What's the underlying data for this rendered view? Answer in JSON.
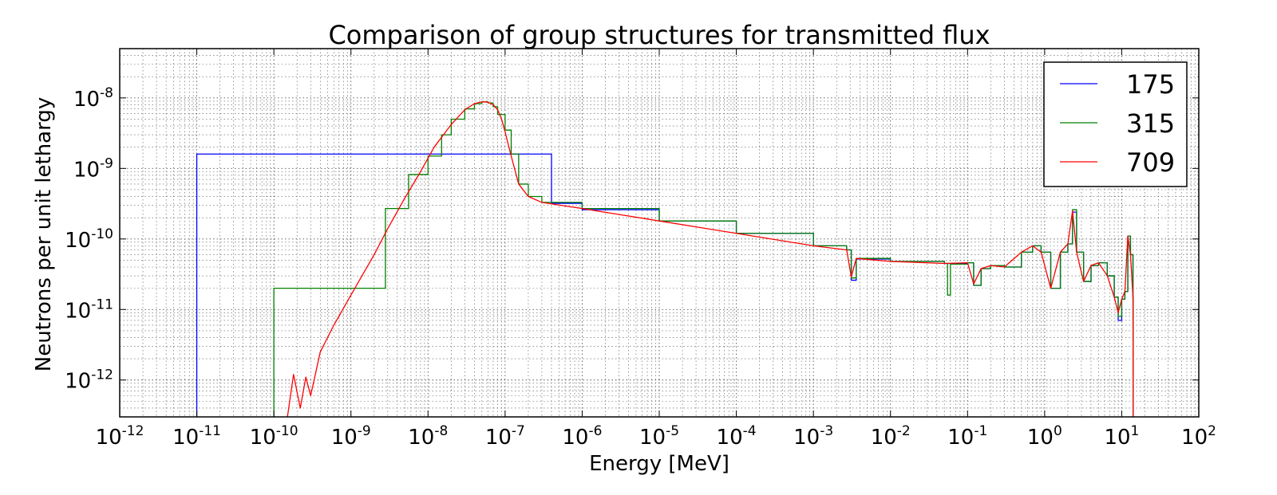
{
  "chart_data": {
    "type": "line",
    "title": "Comparison of group structures for transmitted flux",
    "xlabel": "Energy [MeV]",
    "ylabel": "Neutrons per unit lethargy",
    "xscale": "log",
    "yscale": "log",
    "xlim": [
      1e-12,
      100
    ],
    "ylim": [
      3e-13,
      5e-08
    ],
    "grid": true,
    "legend_position": "top-right",
    "x_ticks": [
      {
        "base": "10",
        "exp": "-12",
        "value": 1e-12
      },
      {
        "base": "10",
        "exp": "-11",
        "value": 1e-11
      },
      {
        "base": "10",
        "exp": "-10",
        "value": 1e-10
      },
      {
        "base": "10",
        "exp": "-9",
        "value": 1e-09
      },
      {
        "base": "10",
        "exp": "-8",
        "value": 1e-08
      },
      {
        "base": "10",
        "exp": "-7",
        "value": 1e-07
      },
      {
        "base": "10",
        "exp": "-6",
        "value": 1e-06
      },
      {
        "base": "10",
        "exp": "-5",
        "value": 1e-05
      },
      {
        "base": "10",
        "exp": "-4",
        "value": 0.0001
      },
      {
        "base": "10",
        "exp": "-3",
        "value": 0.001
      },
      {
        "base": "10",
        "exp": "-2",
        "value": 0.01
      },
      {
        "base": "10",
        "exp": "-1",
        "value": 0.1
      },
      {
        "base": "10",
        "exp": "0",
        "value": 1
      },
      {
        "base": "10",
        "exp": "1",
        "value": 10
      },
      {
        "base": "10",
        "exp": "2",
        "value": 100
      }
    ],
    "y_ticks": [
      {
        "base": "10",
        "exp": "-12",
        "value": 1e-12
      },
      {
        "base": "10",
        "exp": "-11",
        "value": 1e-11
      },
      {
        "base": "10",
        "exp": "-10",
        "value": 1e-10
      },
      {
        "base": "10",
        "exp": "-9",
        "value": 1e-09
      },
      {
        "base": "10",
        "exp": "-8",
        "value": 1e-08
      }
    ],
    "series": [
      {
        "name": "175",
        "color": "#0000ff",
        "style": "step",
        "x": [
          1e-11,
          1e-11,
          4e-07,
          4e-07,
          1e-06,
          1e-05,
          0.0001,
          0.001,
          0.0027,
          0.0031,
          0.0036,
          0.01,
          0.05,
          0.1,
          0.12,
          0.15,
          0.2,
          0.3,
          0.5,
          0.7,
          0.9,
          1.2,
          1.6,
          2.0,
          2.3,
          2.6,
          3.2,
          4.0,
          5.0,
          6.5,
          8.0,
          9.0,
          10.0,
          11.0,
          12.0,
          13.0,
          14.0,
          14.1
        ],
        "y": [
          3e-13,
          1.6e-09,
          1.6e-09,
          3.2e-10,
          2.6e-10,
          1.8e-10,
          1.2e-10,
          8e-11,
          7e-11,
          2.6e-11,
          5.2e-11,
          4.8e-11,
          4.5e-11,
          4.6e-11,
          2.2e-11,
          3.8e-11,
          4.2e-11,
          4e-11,
          6.5e-11,
          8e-11,
          6.5e-11,
          2e-11,
          6.5e-11,
          8.5e-11,
          2.4e-10,
          6.5e-11,
          2.5e-11,
          4.2e-11,
          4.6e-11,
          3e-11,
          1.5e-11,
          7e-12,
          1.4e-11,
          1.8e-11,
          1.1e-10,
          6e-11,
          1.5e-11,
          3e-13
        ]
      },
      {
        "name": "315",
        "color": "#008000",
        "style": "step",
        "x": [
          1e-10,
          1e-10,
          2.8e-09,
          2.8e-09,
          5.6e-09,
          5.6e-09,
          1e-08,
          1e-08,
          1.5e-08,
          2e-08,
          3e-08,
          4e-08,
          5e-08,
          6e-08,
          7e-08,
          8e-08,
          1e-07,
          1.2e-07,
          1.5e-07,
          2e-07,
          3e-07,
          1e-06,
          1e-05,
          0.0001,
          0.001,
          0.0027,
          0.0031,
          0.0036,
          0.01,
          0.05,
          0.055,
          0.06,
          0.1,
          0.12,
          0.15,
          0.2,
          0.3,
          0.5,
          0.7,
          0.9,
          1.2,
          1.6,
          2.0,
          2.3,
          2.6,
          3.2,
          4.0,
          5.0,
          6.5,
          8.0,
          9.0,
          10.0,
          11.0,
          12.0,
          13.0,
          14.0,
          14.1
        ],
        "y": [
          3e-13,
          2e-11,
          2e-11,
          2.7e-10,
          2.7e-10,
          8.2e-10,
          8.2e-10,
          1.5e-09,
          3e-09,
          5e-09,
          7e-09,
          8.3e-09,
          8.8e-09,
          8.5e-09,
          7.5e-09,
          5.8e-09,
          3.5e-09,
          1.6e-09,
          6e-10,
          4e-10,
          3.3e-10,
          2.7e-10,
          1.8e-10,
          1.2e-10,
          8e-11,
          7e-11,
          2.8e-11,
          5.3e-11,
          4.8e-11,
          4.5e-11,
          1.6e-11,
          4.4e-11,
          4.6e-11,
          2.2e-11,
          3.8e-11,
          4.2e-11,
          4e-11,
          6.5e-11,
          8e-11,
          6.5e-11,
          2e-11,
          6.5e-11,
          8.5e-11,
          2.6e-10,
          6.5e-11,
          2.5e-11,
          4.2e-11,
          4.6e-11,
          3e-11,
          1.5e-11,
          8e-12,
          1.4e-11,
          1.8e-11,
          1.1e-10,
          6e-11,
          1.5e-11,
          3e-13
        ]
      },
      {
        "name": "709",
        "color": "#ff0000",
        "style": "line",
        "x": [
          1.5e-10,
          1.8e-10,
          2.2e-10,
          2.6e-10,
          3e-10,
          4e-10,
          6e-10,
          1e-09,
          2e-09,
          3e-09,
          5e-09,
          8e-09,
          1.2e-08,
          2e-08,
          3e-08,
          4e-08,
          5e-08,
          6e-08,
          7e-08,
          8e-08,
          9e-08,
          1e-07,
          1.2e-07,
          1.5e-07,
          2e-07,
          3e-07,
          1e-06,
          1e-05,
          0.0001,
          0.001,
          0.0027,
          0.0031,
          0.0036,
          0.01,
          0.05,
          0.1,
          0.12,
          0.15,
          0.2,
          0.3,
          0.5,
          0.7,
          0.9,
          1.2,
          1.6,
          2.0,
          2.3,
          2.6,
          3.2,
          4.0,
          5.0,
          6.5,
          8.0,
          9.0,
          10.0,
          11.0,
          12.0,
          13.0,
          14.0,
          14.1
        ],
        "y": [
          3e-13,
          1.2e-12,
          4e-13,
          1.1e-12,
          6e-13,
          2.5e-12,
          6e-12,
          1.6e-11,
          6e-11,
          1.4e-10,
          3.8e-10,
          9e-10,
          2e-09,
          4.2e-09,
          6.8e-09,
          8.3e-09,
          8.8e-09,
          8.7e-09,
          8e-09,
          6.8e-09,
          5e-09,
          3.3e-09,
          1.5e-09,
          6e-10,
          4e-10,
          3.3e-10,
          2.7e-10,
          1.8e-10,
          1.2e-10,
          8e-11,
          7e-11,
          2.9e-11,
          5.3e-11,
          4.8e-11,
          4.5e-11,
          4.6e-11,
          2.3e-11,
          3.8e-11,
          4.2e-11,
          4e-11,
          6.5e-11,
          8e-11,
          6.5e-11,
          2e-11,
          6.5e-11,
          8.5e-11,
          2.5e-10,
          6.5e-11,
          2.5e-11,
          4.2e-11,
          4.6e-11,
          3e-11,
          1.5e-11,
          9e-12,
          1.4e-11,
          1.8e-11,
          1.1e-10,
          6e-11,
          1.5e-11,
          3e-13
        ]
      }
    ]
  }
}
